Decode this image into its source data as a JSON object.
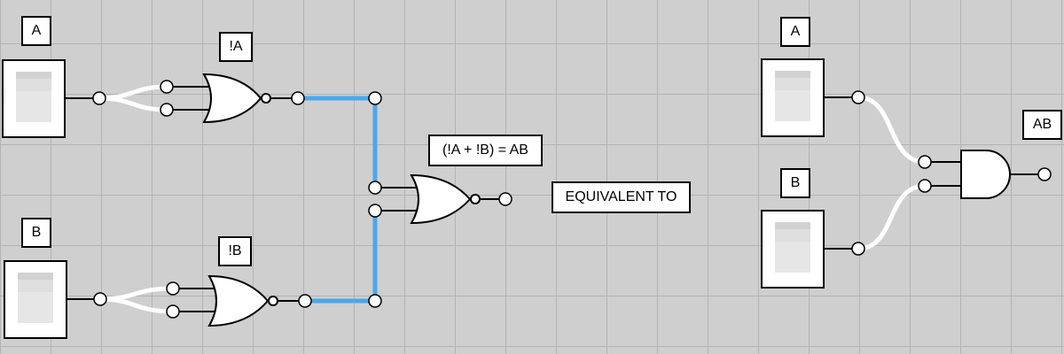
{
  "left_circuit": {
    "input_a_label": "A",
    "input_b_label": "B",
    "not_a_label": "!A",
    "not_b_label": "!B",
    "expression_label": "(!A + !B) = AB"
  },
  "equivalence_label": "EQUIVALENT TO",
  "right_circuit": {
    "input_a_label": "A",
    "input_b_label": "B",
    "output_label": "AB"
  },
  "colors": {
    "canvas_background": "#cfcfcf",
    "grid_line": "#b3b3b3",
    "active_wire": "#4aa8ec",
    "inactive_wire": "#ffffff",
    "stroke": "#000000"
  }
}
